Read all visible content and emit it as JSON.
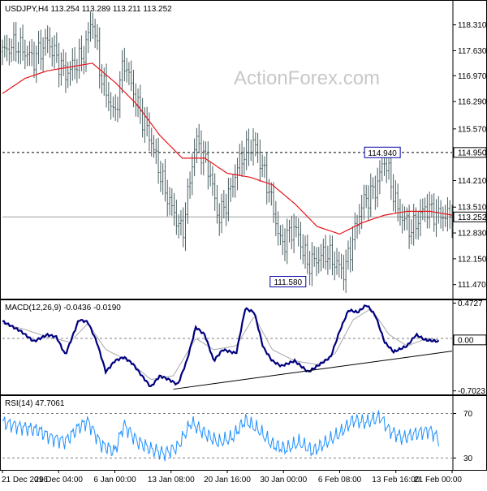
{
  "chart_data": [
    {
      "type": "ohlc",
      "title": "USDJPY,H4  113.254 113.289 113.211 113.252",
      "watermark": "ActionForex.com",
      "ylim": [
        111.1,
        118.9
      ],
      "y_ticks": [
        "118.310",
        "117.630",
        "116.970",
        "116.290",
        "115.570",
        "114.950",
        "114.210",
        "113.510",
        "113.252",
        "112.830",
        "112.150",
        "111.470"
      ],
      "y_tick_values": [
        118.31,
        117.63,
        116.97,
        116.29,
        115.57,
        114.95,
        114.21,
        113.51,
        113.252,
        112.83,
        112.15,
        111.47
      ],
      "highlighted_ticks": [
        {
          "label": "114.950",
          "value": 114.95
        },
        {
          "label": "113.252",
          "value": 113.252
        }
      ],
      "x_ticks": [
        "21 Dec 2016",
        "29 Dec 04:00",
        "6 Jan 00:00",
        "13 Jan 08:00",
        "20 Jan 16:00",
        "30 Jan 00:00",
        "6 Feb 08:00",
        "13 Feb 16:00",
        "21 Feb 00:00"
      ],
      "x_tick_positions": [
        0,
        0.125,
        0.25,
        0.375,
        0.5,
        0.625,
        0.75,
        0.875,
        1.0
      ],
      "annotations": [
        {
          "label": "114.940",
          "value": 114.94,
          "x": 0.845
        },
        {
          "label": "111.580",
          "value": 111.58,
          "x": 0.635
        }
      ],
      "resistance_level": 114.95,
      "current_level": 113.252,
      "price_anchors": [
        [
          0,
          117.6
        ],
        [
          0.03,
          117.8
        ],
        [
          0.07,
          117.4
        ],
        [
          0.1,
          117.9
        ],
        [
          0.14,
          117.0
        ],
        [
          0.18,
          117.5
        ],
        [
          0.2,
          118.5
        ],
        [
          0.22,
          116.9
        ],
        [
          0.25,
          115.9
        ],
        [
          0.27,
          117.4
        ],
        [
          0.3,
          116.2
        ],
        [
          0.33,
          115.3
        ],
        [
          0.36,
          114.0
        ],
        [
          0.4,
          112.8
        ],
        [
          0.43,
          115.3
        ],
        [
          0.46,
          114.5
        ],
        [
          0.48,
          113.2
        ],
        [
          0.5,
          113.7
        ],
        [
          0.53,
          114.8
        ],
        [
          0.56,
          115.2
        ],
        [
          0.59,
          114.1
        ],
        [
          0.62,
          112.5
        ],
        [
          0.65,
          113.0
        ],
        [
          0.68,
          112.0
        ],
        [
          0.72,
          112.3
        ],
        [
          0.76,
          111.8
        ],
        [
          0.8,
          113.6
        ],
        [
          0.83,
          114.0
        ],
        [
          0.85,
          114.8
        ],
        [
          0.88,
          113.4
        ],
        [
          0.91,
          112.9
        ],
        [
          0.94,
          113.5
        ],
        [
          0.97,
          113.3
        ],
        [
          1.0,
          113.25
        ]
      ],
      "ma_anchors": [
        [
          0,
          116.5
        ],
        [
          0.05,
          116.9
        ],
        [
          0.1,
          117.1
        ],
        [
          0.15,
          117.2
        ],
        [
          0.2,
          117.3
        ],
        [
          0.25,
          116.8
        ],
        [
          0.3,
          116.2
        ],
        [
          0.35,
          115.4
        ],
        [
          0.4,
          114.8
        ],
        [
          0.45,
          114.8
        ],
        [
          0.5,
          114.4
        ],
        [
          0.55,
          114.3
        ],
        [
          0.6,
          114.1
        ],
        [
          0.65,
          113.6
        ],
        [
          0.7,
          113.0
        ],
        [
          0.75,
          112.8
        ],
        [
          0.8,
          113.1
        ],
        [
          0.85,
          113.3
        ],
        [
          0.9,
          113.4
        ],
        [
          0.95,
          113.4
        ],
        [
          1.0,
          113.3
        ]
      ]
    },
    {
      "type": "line",
      "title": "MACD(12,26,9) -0.0436 -0.0190",
      "ylim": [
        -0.75,
        0.5
      ],
      "y_ticks": [
        "0.4727",
        "0.00",
        "-0.7023"
      ],
      "y_tick_values": [
        0.4727,
        0.0,
        -0.7023
      ],
      "highlighted_ticks": [
        {
          "label": "0.00",
          "value": -0.02
        }
      ],
      "trendline": [
        [
          0.38,
          -0.68
        ],
        [
          1.0,
          -0.17
        ]
      ],
      "series": [
        {
          "values": [
            [
              0,
              0.23
            ],
            [
              0.04,
              0.1
            ],
            [
              0.07,
              -0.04
            ],
            [
              0.1,
              0.05
            ],
            [
              0.12,
              0.02
            ],
            [
              0.14,
              -0.22
            ],
            [
              0.17,
              0.25
            ],
            [
              0.19,
              0.22
            ],
            [
              0.21,
              -0.05
            ],
            [
              0.23,
              -0.45
            ],
            [
              0.25,
              -0.3
            ],
            [
              0.27,
              -0.25
            ],
            [
              0.29,
              -0.34
            ],
            [
              0.31,
              -0.5
            ],
            [
              0.33,
              -0.65
            ],
            [
              0.35,
              -0.5
            ],
            [
              0.37,
              -0.55
            ],
            [
              0.39,
              -0.62
            ],
            [
              0.41,
              -0.3
            ],
            [
              0.43,
              0.15
            ],
            [
              0.45,
              0.05
            ],
            [
              0.47,
              -0.3
            ],
            [
              0.49,
              -0.15
            ],
            [
              0.52,
              -0.2
            ],
            [
              0.54,
              0.4
            ],
            [
              0.56,
              0.35
            ],
            [
              0.58,
              -0.12
            ],
            [
              0.6,
              -0.3
            ],
            [
              0.62,
              -0.37
            ],
            [
              0.65,
              -0.3
            ],
            [
              0.68,
              -0.45
            ],
            [
              0.71,
              -0.33
            ],
            [
              0.73,
              -0.25
            ],
            [
              0.75,
              0.1
            ],
            [
              0.77,
              0.38
            ],
            [
              0.79,
              0.35
            ],
            [
              0.81,
              0.45
            ],
            [
              0.83,
              0.3
            ],
            [
              0.85,
              -0.05
            ],
            [
              0.87,
              -0.18
            ],
            [
              0.9,
              -0.1
            ],
            [
              0.92,
              0.05
            ],
            [
              0.94,
              -0.02
            ],
            [
              0.97,
              -0.04
            ]
          ]
        }
      ],
      "signal_anchors": [
        [
          0,
          0.2
        ],
        [
          0.05,
          0.12
        ],
        [
          0.1,
          0.02
        ],
        [
          0.15,
          -0.05
        ],
        [
          0.19,
          0.2
        ],
        [
          0.23,
          -0.15
        ],
        [
          0.28,
          -0.3
        ],
        [
          0.33,
          -0.55
        ],
        [
          0.38,
          -0.5
        ],
        [
          0.43,
          0.0
        ],
        [
          0.47,
          -0.15
        ],
        [
          0.52,
          -0.1
        ],
        [
          0.56,
          0.3
        ],
        [
          0.6,
          -0.15
        ],
        [
          0.65,
          -0.3
        ],
        [
          0.7,
          -0.35
        ],
        [
          0.74,
          -0.2
        ],
        [
          0.78,
          0.25
        ],
        [
          0.82,
          0.4
        ],
        [
          0.86,
          0.05
        ],
        [
          0.9,
          -0.1
        ],
        [
          0.94,
          -0.01
        ],
        [
          0.97,
          -0.02
        ]
      ]
    },
    {
      "type": "line",
      "title": "RSI(14) 47.7061",
      "ylim": [
        20,
        85
      ],
      "y_ticks": [
        "70",
        "30"
      ],
      "y_tick_values": [
        70,
        30
      ],
      "levels": [
        70,
        30
      ],
      "series": [
        {
          "values": [
            [
              0,
              62
            ],
            [
              0.04,
              58
            ],
            [
              0.08,
              55
            ],
            [
              0.11,
              48
            ],
            [
              0.14,
              45
            ],
            [
              0.17,
              58
            ],
            [
              0.19,
              63
            ],
            [
              0.22,
              42
            ],
            [
              0.25,
              36
            ],
            [
              0.27,
              60
            ],
            [
              0.3,
              45
            ],
            [
              0.33,
              38
            ],
            [
              0.36,
              34
            ],
            [
              0.39,
              40
            ],
            [
              0.42,
              62
            ],
            [
              0.45,
              52
            ],
            [
              0.48,
              44
            ],
            [
              0.51,
              48
            ],
            [
              0.54,
              64
            ],
            [
              0.57,
              55
            ],
            [
              0.6,
              42
            ],
            [
              0.63,
              38
            ],
            [
              0.66,
              44
            ],
            [
              0.69,
              36
            ],
            [
              0.72,
              44
            ],
            [
              0.75,
              52
            ],
            [
              0.78,
              64
            ],
            [
              0.81,
              62
            ],
            [
              0.84,
              67
            ],
            [
              0.86,
              55
            ],
            [
              0.89,
              48
            ],
            [
              0.92,
              52
            ],
            [
              0.95,
              55
            ],
            [
              0.97,
              47.7
            ]
          ]
        }
      ]
    }
  ]
}
